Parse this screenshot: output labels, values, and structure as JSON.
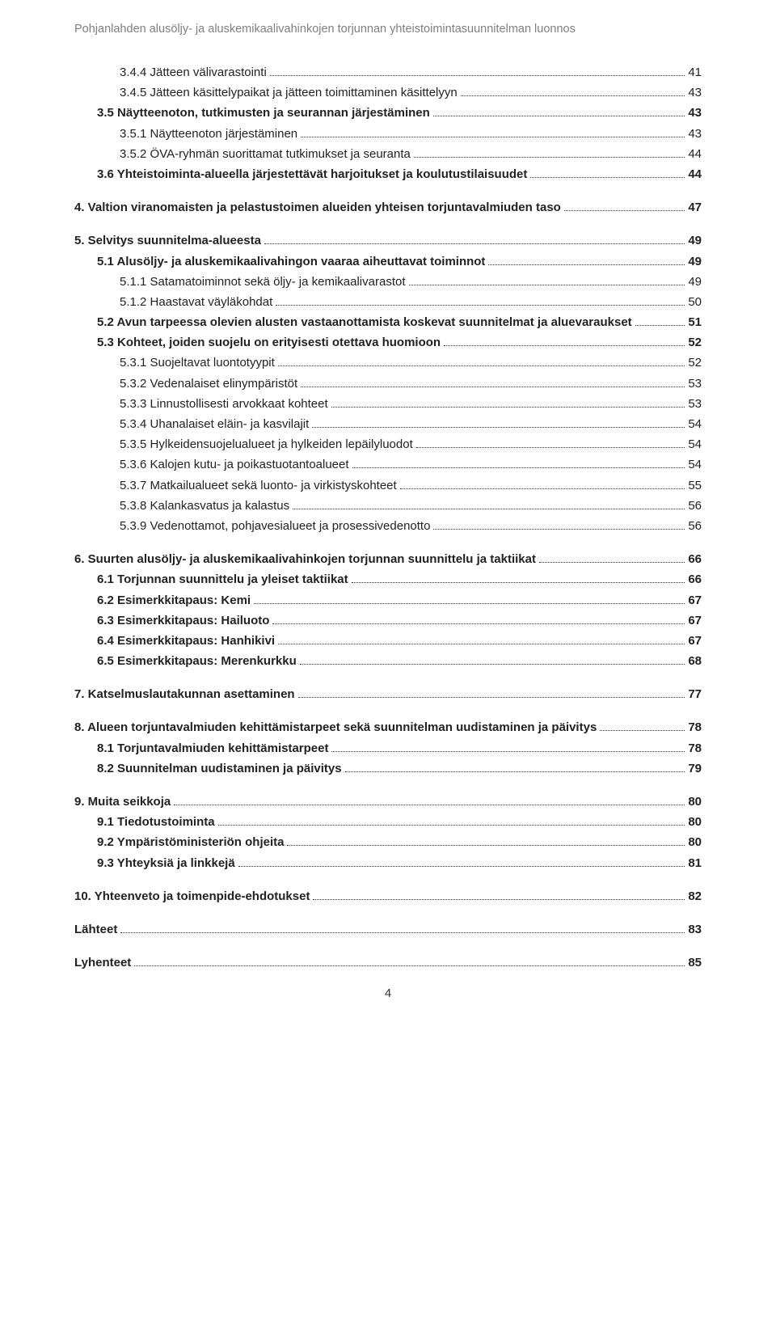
{
  "running_header": "Pohjanlahden alusöljy- ja aluskemikaalivahinkojen torjunnan yhteistoimintasuunnitelman luonnos",
  "page_number": "4",
  "toc": [
    {
      "indent": 2,
      "bold": false,
      "label": "3.4.4 Jätteen välivarastointi",
      "page": "41",
      "gap_before": false
    },
    {
      "indent": 2,
      "bold": false,
      "label": "3.4.5 Jätteen käsittelypaikat ja jätteen toimittaminen käsittelyyn",
      "page": "43",
      "gap_before": false
    },
    {
      "indent": 1,
      "bold": true,
      "label": "3.5 Näytteenoton, tutkimusten ja seurannan järjestäminen",
      "page": "43",
      "gap_before": false
    },
    {
      "indent": 2,
      "bold": false,
      "label": "3.5.1 Näytteenoton järjestäminen",
      "page": "43",
      "gap_before": false
    },
    {
      "indent": 2,
      "bold": false,
      "label": "3.5.2 ÖVA-ryhmän suorittamat tutkimukset ja seuranta",
      "page": "44",
      "gap_before": false
    },
    {
      "indent": 1,
      "bold": true,
      "label": "3.6 Yhteistoiminta-alueella järjestettävät harjoitukset ja koulutustilaisuudet",
      "page": "44",
      "gap_before": false
    },
    {
      "indent": 0,
      "bold": true,
      "label": "4. Valtion viranomaisten ja pelastustoimen alueiden yhteisen torjuntavalmiuden taso",
      "page": "47",
      "gap_before": true
    },
    {
      "indent": 0,
      "bold": true,
      "label": "5. Selvitys suunnitelma-alueesta",
      "page": "49",
      "gap_before": true
    },
    {
      "indent": 1,
      "bold": true,
      "label": "5.1 Alusöljy- ja aluskemikaalivahingon vaaraa aiheuttavat toiminnot",
      "page": "49",
      "gap_before": false
    },
    {
      "indent": 2,
      "bold": false,
      "label": "5.1.1 Satamatoiminnot sekä öljy- ja kemikaalivarastot",
      "page": "49",
      "gap_before": false
    },
    {
      "indent": 2,
      "bold": false,
      "label": "5.1.2 Haastavat väyläkohdat",
      "page": "50",
      "gap_before": false
    },
    {
      "indent": 1,
      "bold": true,
      "label": "5.2 Avun tarpeessa olevien alusten vastaanottamista koskevat suunnitelmat ja aluevaraukset",
      "page": "51",
      "gap_before": false
    },
    {
      "indent": 1,
      "bold": true,
      "label": "5.3 Kohteet, joiden suojelu on erityisesti otettava huomioon",
      "page": "52",
      "gap_before": false
    },
    {
      "indent": 2,
      "bold": false,
      "label": "5.3.1 Suojeltavat luontotyypit",
      "page": "52",
      "gap_before": false
    },
    {
      "indent": 2,
      "bold": false,
      "label": "5.3.2 Vedenalaiset elinympäristöt",
      "page": "53",
      "gap_before": false
    },
    {
      "indent": 2,
      "bold": false,
      "label": "5.3.3 Linnustollisesti arvokkaat kohteet",
      "page": "53",
      "gap_before": false
    },
    {
      "indent": 2,
      "bold": false,
      "label": "5.3.4 Uhanalaiset eläin- ja kasvilajit",
      "page": "54",
      "gap_before": false
    },
    {
      "indent": 2,
      "bold": false,
      "label": "5.3.5 Hylkeidensuojelualueet ja hylkeiden lepäilyluodot",
      "page": "54",
      "gap_before": false
    },
    {
      "indent": 2,
      "bold": false,
      "label": "5.3.6 Kalojen kutu- ja poikastuotantoalueet",
      "page": "54",
      "gap_before": false
    },
    {
      "indent": 2,
      "bold": false,
      "label": "5.3.7 Matkailualueet sekä luonto- ja virkistyskohteet",
      "page": "55",
      "gap_before": false
    },
    {
      "indent": 2,
      "bold": false,
      "label": "5.3.8 Kalankasvatus ja kalastus",
      "page": "56",
      "gap_before": false
    },
    {
      "indent": 2,
      "bold": false,
      "label": "5.3.9 Vedenottamot, pohjavesialueet ja prosessivedenotto",
      "page": "56",
      "gap_before": false
    },
    {
      "indent": 0,
      "bold": true,
      "label": "6. Suurten alusöljy- ja aluskemikaalivahinkojen torjunnan suunnittelu ja taktiikat",
      "page": "66",
      "gap_before": true
    },
    {
      "indent": 1,
      "bold": true,
      "label": "6.1 Torjunnan suunnittelu ja yleiset taktiikat",
      "page": "66",
      "gap_before": false
    },
    {
      "indent": 1,
      "bold": true,
      "label": "6.2 Esimerkkitapaus: Kemi",
      "page": "67",
      "gap_before": false
    },
    {
      "indent": 1,
      "bold": true,
      "label": "6.3 Esimerkkitapaus: Hailuoto",
      "page": "67",
      "gap_before": false
    },
    {
      "indent": 1,
      "bold": true,
      "label": "6.4 Esimerkkitapaus: Hanhikivi",
      "page": "67",
      "gap_before": false
    },
    {
      "indent": 1,
      "bold": true,
      "label": "6.5 Esimerkkitapaus: Merenkurkku",
      "page": "68",
      "gap_before": false
    },
    {
      "indent": 0,
      "bold": true,
      "label": "7. Katselmuslautakunnan asettaminen",
      "page": "77",
      "gap_before": true
    },
    {
      "indent": 0,
      "bold": true,
      "label": "8. Alueen torjuntavalmiuden kehittämistarpeet sekä suunnitelman uudistaminen ja päivitys",
      "page": "78",
      "gap_before": true
    },
    {
      "indent": 1,
      "bold": true,
      "label": "8.1 Torjuntavalmiuden kehittämistarpeet",
      "page": "78",
      "gap_before": false
    },
    {
      "indent": 1,
      "bold": true,
      "label": "8.2 Suunnitelman uudistaminen ja päivitys",
      "page": "79",
      "gap_before": false
    },
    {
      "indent": 0,
      "bold": true,
      "label": "9. Muita seikkoja",
      "page": "80",
      "gap_before": true
    },
    {
      "indent": 1,
      "bold": true,
      "label": "9.1 Tiedotustoiminta",
      "page": "80",
      "gap_before": false
    },
    {
      "indent": 1,
      "bold": true,
      "label": "9.2 Ympäristöministeriön ohjeita",
      "page": "80",
      "gap_before": false
    },
    {
      "indent": 1,
      "bold": true,
      "label": "9.3 Yhteyksiä ja linkkejä",
      "page": "81",
      "gap_before": false
    },
    {
      "indent": 0,
      "bold": true,
      "label": "10. Yhteenveto ja toimenpide-ehdotukset",
      "page": "82",
      "gap_before": true
    },
    {
      "indent": 0,
      "bold": true,
      "label": "Lähteet",
      "page": "83",
      "gap_before": true
    },
    {
      "indent": 0,
      "bold": true,
      "label": "Lyhenteet",
      "page": "85",
      "gap_before": true
    }
  ]
}
